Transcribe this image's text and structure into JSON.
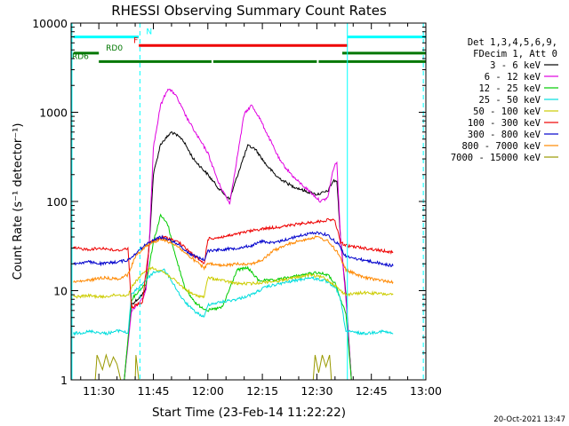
{
  "chart_data": {
    "type": "line",
    "title": "RHESSI Observing Summary Count Rates",
    "xlabel": "Start Time (23-Feb-14 11:22:22)",
    "ylabel": "Count Rate (s⁻¹ detector⁻¹)",
    "yscale": "log",
    "ylim": [
      1,
      10000
    ],
    "xlim_minutes": [
      22.37,
      120.0
    ],
    "x_tick_labels": [
      "11:30",
      "11:45",
      "12:00",
      "12:15",
      "12:30",
      "12:45",
      "13:00"
    ],
    "x_tick_minutes": [
      30,
      45,
      60,
      75,
      90,
      105,
      120
    ],
    "y_tick_labels": [
      "1",
      "10",
      "100",
      "1000",
      "10000"
    ],
    "y_tick_values": [
      1,
      10,
      100,
      1000,
      10000
    ],
    "timestamp": "20-Oct-2021 13:47",
    "legend_position": "right",
    "legend_header": [
      "Det 1,3,4,5,6,9,",
      "FDecim 1, Att 0"
    ],
    "series": [
      {
        "name": "3 - 6 keV",
        "color": "#000000",
        "points": [
          [
            23,
            1
          ],
          [
            37,
            1
          ],
          [
            39,
            7
          ],
          [
            42,
            9
          ],
          [
            43,
            11
          ],
          [
            44,
            40
          ],
          [
            45,
            200
          ],
          [
            47,
            440
          ],
          [
            50,
            600
          ],
          [
            53,
            500
          ],
          [
            56,
            300
          ],
          [
            60,
            200
          ],
          [
            63,
            140
          ],
          [
            66,
            105
          ],
          [
            69,
            250
          ],
          [
            71,
            420
          ],
          [
            73,
            390
          ],
          [
            76,
            260
          ],
          [
            79,
            190
          ],
          [
            83,
            150
          ],
          [
            87,
            130
          ],
          [
            90,
            120
          ],
          [
            93,
            130
          ],
          [
            94.5,
            170
          ],
          [
            95.5,
            170
          ],
          [
            96.5,
            40
          ],
          [
            98,
            9
          ],
          [
            99.5,
            1
          ]
        ]
      },
      {
        "name": "6 - 12 keV",
        "color": "#e000e0",
        "points": [
          [
            23,
            1
          ],
          [
            37,
            1
          ],
          [
            39,
            6
          ],
          [
            42,
            8
          ],
          [
            43,
            10
          ],
          [
            44,
            45
          ],
          [
            45,
            400
          ],
          [
            47,
            1200
          ],
          [
            49,
            1850
          ],
          [
            51,
            1600
          ],
          [
            54,
            900
          ],
          [
            57,
            550
          ],
          [
            60,
            350
          ],
          [
            63,
            160
          ],
          [
            66,
            95
          ],
          [
            68,
            300
          ],
          [
            70,
            950
          ],
          [
            72,
            1200
          ],
          [
            74,
            900
          ],
          [
            77,
            500
          ],
          [
            80,
            280
          ],
          [
            84,
            180
          ],
          [
            88,
            130
          ],
          [
            91,
            100
          ],
          [
            93,
            110
          ],
          [
            94.5,
            230
          ],
          [
            95.5,
            280
          ],
          [
            96.5,
            40
          ],
          [
            98,
            8
          ],
          [
            99.5,
            1
          ]
        ]
      },
      {
        "name": "12 - 25 keV",
        "color": "#00cc00",
        "points": [
          [
            23,
            1
          ],
          [
            37,
            1
          ],
          [
            39,
            8
          ],
          [
            42,
            11
          ],
          [
            43,
            12
          ],
          [
            45,
            35
          ],
          [
            47,
            70
          ],
          [
            49,
            55
          ],
          [
            51,
            25
          ],
          [
            54,
            10
          ],
          [
            57,
            7
          ],
          [
            60,
            6
          ],
          [
            64,
            6.5
          ],
          [
            68,
            17
          ],
          [
            71,
            18
          ],
          [
            74,
            13
          ],
          [
            78,
            13
          ],
          [
            82,
            14
          ],
          [
            86,
            15
          ],
          [
            90,
            16
          ],
          [
            93,
            15
          ],
          [
            95,
            12
          ],
          [
            96.5,
            8
          ],
          [
            98,
            5.5
          ],
          [
            99.5,
            1
          ]
        ]
      },
      {
        "name": "25 - 50 keV",
        "color": "#00dddd",
        "points": [
          [
            23,
            3.3
          ],
          [
            28,
            3.5
          ],
          [
            32,
            3.3
          ],
          [
            36,
            3.6
          ],
          [
            38,
            3.3
          ],
          [
            39,
            9
          ],
          [
            42,
            12
          ],
          [
            45,
            16
          ],
          [
            48,
            17
          ],
          [
            50,
            13
          ],
          [
            53,
            8
          ],
          [
            56,
            6
          ],
          [
            59,
            5
          ],
          [
            60,
            7
          ],
          [
            64,
            7.5
          ],
          [
            68,
            8
          ],
          [
            72,
            9
          ],
          [
            76,
            11
          ],
          [
            80,
            12
          ],
          [
            84,
            13
          ],
          [
            88,
            14
          ],
          [
            92,
            13
          ],
          [
            95,
            11
          ],
          [
            96.5,
            8
          ],
          [
            98,
            3.5
          ],
          [
            103,
            3.3
          ],
          [
            108,
            3.5
          ],
          [
            111,
            3.3
          ]
        ]
      },
      {
        "name": "50 - 100 keV",
        "color": "#cccc00",
        "points": [
          [
            23,
            8.5
          ],
          [
            27,
            8.8
          ],
          [
            31,
            8.5
          ],
          [
            35,
            9
          ],
          [
            38,
            8.8
          ],
          [
            39,
            11
          ],
          [
            41,
            14
          ],
          [
            44,
            18
          ],
          [
            47,
            17
          ],
          [
            50,
            14
          ],
          [
            53,
            11
          ],
          [
            56,
            9
          ],
          [
            59,
            8.5
          ],
          [
            60,
            14
          ],
          [
            64,
            13
          ],
          [
            68,
            12
          ],
          [
            72,
            12
          ],
          [
            76,
            12.5
          ],
          [
            80,
            13
          ],
          [
            84,
            14
          ],
          [
            88,
            15
          ],
          [
            92,
            14
          ],
          [
            95,
            11.5
          ],
          [
            96.5,
            10
          ],
          [
            98,
            9
          ],
          [
            103,
            9.5
          ],
          [
            108,
            9.2
          ],
          [
            111,
            9
          ]
        ]
      },
      {
        "name": "100 - 300 keV",
        "color": "#ee0000",
        "points": [
          [
            23,
            30
          ],
          [
            27,
            29
          ],
          [
            31,
            30
          ],
          [
            35,
            28
          ],
          [
            38,
            30
          ],
          [
            39,
            6.5
          ],
          [
            42,
            7.5
          ],
          [
            44,
            35
          ],
          [
            48,
            40
          ],
          [
            52,
            35
          ],
          [
            56,
            25
          ],
          [
            59,
            20
          ],
          [
            60,
            38
          ],
          [
            64,
            40
          ],
          [
            68,
            43
          ],
          [
            72,
            47
          ],
          [
            76,
            50
          ],
          [
            80,
            52
          ],
          [
            84,
            55
          ],
          [
            88,
            58
          ],
          [
            91,
            60
          ],
          [
            94,
            63
          ],
          [
            95,
            60
          ],
          [
            96.5,
            35
          ],
          [
            98,
            32
          ],
          [
            103,
            30
          ],
          [
            108,
            28
          ],
          [
            111,
            27
          ]
        ]
      },
      {
        "name": "300 - 800 keV",
        "color": "#0000cc",
        "points": [
          [
            23,
            20
          ],
          [
            27,
            21
          ],
          [
            31,
            20
          ],
          [
            35,
            21
          ],
          [
            38,
            22
          ],
          [
            40,
            26
          ],
          [
            43,
            33
          ],
          [
            47,
            40
          ],
          [
            51,
            35
          ],
          [
            55,
            26
          ],
          [
            59,
            22
          ],
          [
            60,
            28
          ],
          [
            64,
            29
          ],
          [
            68,
            30
          ],
          [
            72,
            32
          ],
          [
            75,
            36
          ],
          [
            78,
            34
          ],
          [
            82,
            38
          ],
          [
            86,
            42
          ],
          [
            90,
            45
          ],
          [
            93,
            42
          ],
          [
            96,
            33
          ],
          [
            98,
            24
          ],
          [
            103,
            22
          ],
          [
            108,
            20
          ],
          [
            111,
            19
          ]
        ]
      },
      {
        "name": "800 - 7000 keV",
        "color": "#ff8800",
        "points": [
          [
            23,
            12.5
          ],
          [
            27,
            13
          ],
          [
            31,
            14
          ],
          [
            35,
            13.5
          ],
          [
            38,
            15
          ],
          [
            40,
            24
          ],
          [
            43,
            32
          ],
          [
            47,
            38
          ],
          [
            51,
            33
          ],
          [
            55,
            24
          ],
          [
            59,
            18
          ],
          [
            60,
            20
          ],
          [
            64,
            19
          ],
          [
            68,
            20
          ],
          [
            72,
            20
          ],
          [
            75,
            22
          ],
          [
            78,
            28
          ],
          [
            82,
            33
          ],
          [
            86,
            37
          ],
          [
            90,
            40
          ],
          [
            93,
            36
          ],
          [
            96,
            26
          ],
          [
            98,
            17
          ],
          [
            103,
            14
          ],
          [
            108,
            13
          ],
          [
            111,
            12.5
          ]
        ]
      },
      {
        "name": "7000 - 15000 keV",
        "color": "#999900",
        "points": [
          [
            23,
            1
          ],
          [
            29,
            1
          ],
          [
            29.5,
            1.9
          ],
          [
            31,
            1.3
          ],
          [
            32,
            1.9
          ],
          [
            33,
            1.4
          ],
          [
            34,
            1.8
          ],
          [
            35,
            1.5
          ],
          [
            36,
            1
          ],
          [
            40,
            1
          ],
          [
            40.2,
            1.9
          ],
          [
            41,
            1
          ],
          [
            89,
            1
          ],
          [
            89.5,
            1.9
          ],
          [
            90.5,
            1.2
          ],
          [
            91.5,
            1.9
          ],
          [
            92.5,
            1.4
          ],
          [
            93.5,
            1.9
          ],
          [
            94,
            1
          ],
          [
            111,
            1
          ]
        ]
      }
    ],
    "state_bars": [
      {
        "label": "N",
        "color": "#00ffff",
        "level": 7000,
        "segments": [
          [
            23,
            41
          ],
          [
            98.5,
            120
          ]
        ]
      },
      {
        "label": "F",
        "color": "#ee0000",
        "level": 5600,
        "segments": [
          [
            41,
            98.5
          ]
        ]
      },
      {
        "label": "RD0",
        "color": "#007700",
        "level": 4600,
        "segments": [
          [
            23,
            30
          ],
          [
            97,
            120
          ]
        ]
      },
      {
        "label": "RD6",
        "color": "#007700",
        "level": 3700,
        "segments": [
          [
            30,
            61
          ],
          [
            61.5,
            90
          ],
          [
            90.5,
            120
          ]
        ]
      }
    ],
    "vertical_markers": {
      "solid": [
        22.6,
        98.4
      ],
      "dashed": [
        41.3,
        119.3
      ],
      "color": "#00ffff"
    }
  }
}
